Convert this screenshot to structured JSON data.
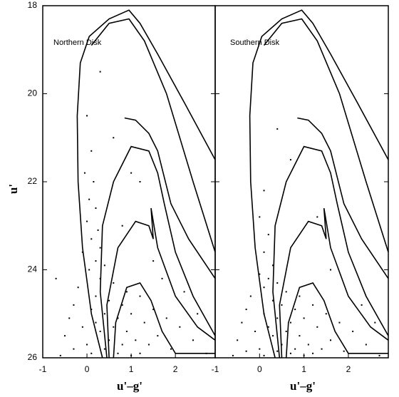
{
  "chart_data": [
    {
      "type": "scatter",
      "label": "Northern Disk",
      "xlabel": "u'–g'",
      "ylabel": "u'",
      "xlim": [
        -1,
        2.9
      ],
      "ylim": [
        26,
        18
      ],
      "xticks": [
        -1,
        0,
        1,
        2
      ],
      "yticks": [
        18,
        20,
        22,
        24,
        26
      ],
      "series": [
        {
          "mode": "points",
          "color": "#000000",
          "x": [
            0.0,
            0.1,
            -0.05,
            0.15,
            0.05,
            0.2,
            0.0,
            0.25,
            0.1,
            0.3,
            -0.1,
            0.2,
            0.4,
            0.05,
            0.3,
            0.6,
            -0.2,
            0.9,
            0.2,
            1.2,
            0.5,
            -0.3,
            0.8,
            0.1,
            1.5,
            0.4,
            1.0,
            -0.4,
            0.7,
            1.8,
            0.2,
            1.3,
            -0.1,
            0.6,
            2.1,
            0.9,
            0.3,
            1.6,
            -0.5,
            0.5,
            1.1,
            2.4,
            0.0,
            0.8,
            1.4,
            -0.3,
            0.4,
            1.9,
            0.7,
            1.2,
            0.1,
            2.7,
            -0.6,
            1.0,
            0.6,
            1.2,
            0.8,
            1.5,
            2.2,
            0.3,
            1.0,
            2.5,
            -0.7,
            1.7
          ],
          "values": [
            20.5,
            21.3,
            21.8,
            22.0,
            22.4,
            22.6,
            22.9,
            23.1,
            23.3,
            23.5,
            23.6,
            23.8,
            23.9,
            24.0,
            24.2,
            24.3,
            24.4,
            24.5,
            24.6,
            24.6,
            24.7,
            24.8,
            24.8,
            24.9,
            24.9,
            25.0,
            25.0,
            25.1,
            25.1,
            25.1,
            25.2,
            25.2,
            25.3,
            25.3,
            25.3,
            25.4,
            25.4,
            25.5,
            25.5,
            25.6,
            25.6,
            25.6,
            25.7,
            25.7,
            25.7,
            25.8,
            25.8,
            25.8,
            25.9,
            25.9,
            25.9,
            25.9,
            25.95,
            25.95,
            21.0,
            22.0,
            23.0,
            23.8,
            24.5,
            19.5,
            21.8,
            25.0,
            24.2,
            24.2
          ]
        },
        {
          "mode": "line",
          "color": "#000000",
          "x": [
            0.35,
            0.1,
            -0.1,
            -0.2,
            -0.22,
            -0.15,
            0.05,
            0.5,
            0.95,
            1.2,
            1.6,
            2.2,
            2.9
          ],
          "values": [
            26,
            25,
            23.5,
            22,
            20.5,
            19.3,
            18.7,
            18.3,
            18.1,
            18.4,
            19.1,
            20.2,
            21.5
          ]
        },
        {
          "mode": "line",
          "color": "#000000",
          "x": [
            0.1,
            0.5,
            0.95,
            1.3,
            1.8,
            2.4,
            2.9
          ],
          "values": [
            18.9,
            18.4,
            18.3,
            18.8,
            20.0,
            22.0,
            23.6
          ]
        },
        {
          "mode": "line",
          "color": "#000000",
          "x": [
            0.85,
            1.1,
            1.4,
            1.55,
            1.6,
            1.9,
            2.3,
            2.9
          ],
          "values": [
            20.55,
            20.6,
            20.9,
            21.2,
            21.3,
            22.5,
            23.3,
            24.2
          ]
        },
        {
          "mode": "line",
          "color": "#000000",
          "x": [
            0.45,
            0.3,
            0.35,
            0.6,
            1.0,
            1.4,
            1.6,
            1.75,
            2.0,
            2.4,
            2.9
          ],
          "values": [
            26,
            24.5,
            23,
            22,
            21.2,
            21.3,
            21.8,
            22.5,
            23.6,
            24.6,
            25.5
          ]
        },
        {
          "mode": "line",
          "color": "#000000",
          "x": [
            0.5,
            0.45,
            0.7,
            1.1,
            1.4,
            1.5,
            1.45,
            1.6,
            2.0,
            2.5,
            2.9
          ],
          "values": [
            26,
            24.8,
            23.5,
            22.9,
            23.0,
            23.3,
            22.6,
            23.5,
            24.6,
            25.3,
            25.6
          ]
        },
        {
          "mode": "line",
          "color": "#000000",
          "x": [
            0.6,
            0.65,
            0.9,
            1.2,
            1.45,
            1.7,
            2.0,
            2.9
          ],
          "values": [
            26,
            25.2,
            24.4,
            24.3,
            24.7,
            25.4,
            25.9,
            25.9
          ]
        }
      ]
    },
    {
      "type": "scatter",
      "label": "Southern Disk",
      "xlabel": "u'–g'",
      "xlim": [
        -1,
        2.9
      ],
      "ylim": [
        26,
        18
      ],
      "xticks": [
        -1,
        0,
        1,
        2
      ],
      "series": [
        {
          "mode": "points",
          "color": "#000000",
          "x": [
            0.1,
            0.0,
            0.2,
            0.1,
            0.3,
            0.0,
            0.2,
            0.4,
            0.1,
            0.6,
            -0.2,
            0.9,
            0.3,
            1.2,
            0.5,
            -0.3,
            0.8,
            0.1,
            1.5,
            0.4,
            1.0,
            -0.4,
            0.7,
            1.8,
            0.2,
            1.3,
            -0.1,
            0.6,
            2.1,
            0.9,
            0.3,
            1.6,
            -0.5,
            0.5,
            1.1,
            2.4,
            0.0,
            0.8,
            1.4,
            -0.3,
            0.4,
            1.9,
            0.7,
            1.2,
            0.1,
            2.7,
            -0.6,
            1.0,
            0.7,
            1.3,
            1.6,
            2.3,
            0.4,
            2.6
          ],
          "values": [
            22.2,
            22.8,
            23.2,
            23.6,
            23.9,
            24.1,
            24.2,
            24.3,
            24.4,
            24.5,
            24.6,
            24.6,
            24.7,
            24.8,
            24.8,
            24.9,
            24.9,
            25.0,
            25.0,
            25.1,
            25.1,
            25.2,
            25.2,
            25.2,
            25.3,
            25.3,
            25.4,
            25.4,
            25.4,
            25.5,
            25.5,
            25.6,
            25.6,
            25.7,
            25.7,
            25.7,
            25.8,
            25.8,
            25.8,
            25.85,
            25.85,
            25.85,
            25.9,
            25.9,
            25.95,
            25.95,
            25.95,
            25.95,
            21.5,
            22.8,
            24.0,
            24.8,
            20.8,
            25.2
          ]
        },
        {
          "mode": "line",
          "color": "#000000",
          "x": [
            0.35,
            0.1,
            -0.1,
            -0.2,
            -0.22,
            -0.15,
            0.05,
            0.5,
            0.95,
            1.2,
            1.6,
            2.2,
            2.9
          ],
          "values": [
            26,
            25,
            23.5,
            22,
            20.5,
            19.3,
            18.7,
            18.3,
            18.1,
            18.4,
            19.1,
            20.2,
            21.5
          ]
        },
        {
          "mode": "line",
          "color": "#000000",
          "x": [
            0.1,
            0.5,
            0.95,
            1.3,
            1.8,
            2.4,
            2.9
          ],
          "values": [
            18.9,
            18.4,
            18.3,
            18.8,
            20.0,
            22.0,
            23.6
          ]
        },
        {
          "mode": "line",
          "color": "#000000",
          "x": [
            0.85,
            1.1,
            1.4,
            1.55,
            1.6,
            1.9,
            2.3,
            2.9
          ],
          "values": [
            20.55,
            20.6,
            20.9,
            21.2,
            21.3,
            22.5,
            23.3,
            24.2
          ]
        },
        {
          "mode": "line",
          "color": "#000000",
          "x": [
            0.45,
            0.3,
            0.35,
            0.6,
            1.0,
            1.4,
            1.6,
            1.75,
            2.0,
            2.4,
            2.9
          ],
          "values": [
            26,
            24.5,
            23,
            22,
            21.2,
            21.3,
            21.8,
            22.5,
            23.6,
            24.6,
            25.5
          ]
        },
        {
          "mode": "line",
          "color": "#000000",
          "x": [
            0.5,
            0.45,
            0.7,
            1.1,
            1.4,
            1.5,
            1.45,
            1.6,
            2.0,
            2.5,
            2.9
          ],
          "values": [
            26,
            24.8,
            23.5,
            22.9,
            23.0,
            23.3,
            22.6,
            23.5,
            24.6,
            25.3,
            25.6
          ]
        },
        {
          "mode": "line",
          "color": "#000000",
          "x": [
            0.6,
            0.65,
            0.9,
            1.2,
            1.45,
            1.7,
            2.0,
            2.9
          ],
          "values": [
            26,
            25.2,
            24.4,
            24.3,
            24.7,
            25.4,
            25.9,
            25.9
          ]
        }
      ]
    }
  ]
}
